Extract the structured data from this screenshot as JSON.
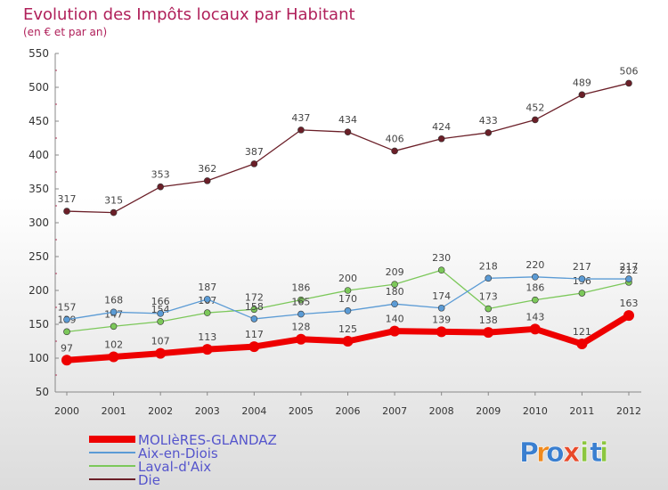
{
  "chart_data": {
    "type": "line",
    "title": "Evolution des Impôts locaux par Habitant",
    "subtitle": "(en € et par an)",
    "x": [
      "2000",
      "2001",
      "2002",
      "2003",
      "2004",
      "2005",
      "2006",
      "2007",
      "2008",
      "2009",
      "2010",
      "2011",
      "2012"
    ],
    "ylim": [
      50,
      550
    ],
    "yticks": [
      50,
      100,
      150,
      200,
      250,
      300,
      350,
      400,
      450,
      500,
      550
    ],
    "grid": false,
    "legend_position": "bottom-left",
    "series": [
      {
        "name": "Die",
        "color": "#6b1f28",
        "stroke": 1.3,
        "values": [
          317,
          315,
          353,
          362,
          387,
          437,
          434,
          406,
          424,
          433,
          452,
          489,
          506
        ]
      },
      {
        "name": "Laval-d'Aix",
        "color": "#7cc85a",
        "stroke": 1.3,
        "values": [
          139,
          147,
          154,
          167,
          172,
          186,
          200,
          209,
          230,
          173,
          186,
          196,
          212
        ]
      },
      {
        "name": "Aix-en-Diois",
        "color": "#5b9bd5",
        "stroke": 1.3,
        "values": [
          157,
          168,
          166,
          187,
          158,
          165,
          170,
          180,
          174,
          218,
          220,
          217,
          217
        ]
      },
      {
        "name": "MOLIèRES-GLANDAZ",
        "color": "#ee0000",
        "stroke": 7,
        "values": [
          97,
          102,
          107,
          113,
          117,
          128,
          125,
          140,
          139,
          138,
          143,
          121,
          163
        ]
      }
    ],
    "legend_order": [
      "MOLIèRES-GLANDAZ",
      "Aix-en-Diois",
      "Laval-d'Aix",
      "Die"
    ]
  },
  "logo": {
    "text": "Proxiti",
    "letters": [
      "P",
      "r",
      "o",
      "x",
      "i",
      "t",
      "i"
    ]
  }
}
